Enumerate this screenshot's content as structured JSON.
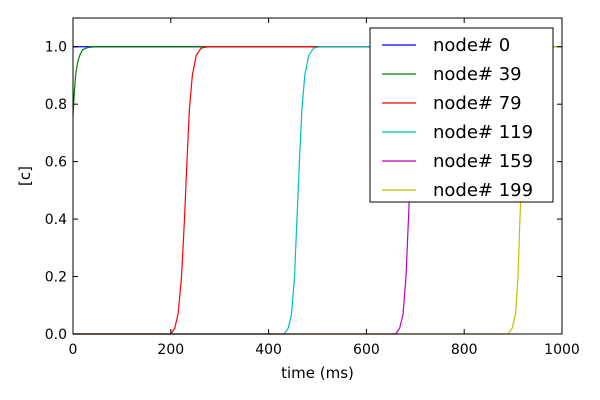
{
  "chart_data": {
    "type": "line",
    "title": "",
    "xlabel": "time (ms)",
    "ylabel": "[c]",
    "xlim": [
      0,
      1000
    ],
    "ylim": [
      0,
      1.1
    ],
    "x_ticks": [
      0,
      200,
      400,
      600,
      800,
      1000
    ],
    "y_ticks": [
      0.0,
      0.2,
      0.4,
      0.6,
      0.8,
      1.0
    ],
    "x_tick_labels": [
      "0",
      "200",
      "400",
      "600",
      "800",
      "1000"
    ],
    "y_tick_labels": [
      "0.0",
      "0.2",
      "0.4",
      "0.6",
      "0.8",
      "1.0"
    ],
    "grid": false,
    "legend_position": "top-right",
    "series": [
      {
        "name": "node# 0",
        "color": "#0000ff",
        "points": [
          [
            0,
            1.0
          ],
          [
            1000,
            1.0
          ]
        ]
      },
      {
        "name": "node# 39",
        "color": "#008000",
        "points": [
          [
            0,
            0.76
          ],
          [
            3,
            0.85
          ],
          [
            6,
            0.91
          ],
          [
            10,
            0.95
          ],
          [
            15,
            0.975
          ],
          [
            20,
            0.99
          ],
          [
            30,
            0.997
          ],
          [
            45,
            1.0
          ],
          [
            1000,
            1.0
          ]
        ]
      },
      {
        "name": "node# 79",
        "color": "#ff0000",
        "points": [
          [
            0,
            0.0
          ],
          [
            200,
            0.0
          ],
          [
            208,
            0.02
          ],
          [
            215,
            0.07
          ],
          [
            222,
            0.2
          ],
          [
            228,
            0.4
          ],
          [
            233,
            0.6
          ],
          [
            238,
            0.78
          ],
          [
            244,
            0.9
          ],
          [
            252,
            0.97
          ],
          [
            262,
            0.995
          ],
          [
            275,
            1.0
          ],
          [
            1000,
            1.0
          ]
        ]
      },
      {
        "name": "node# 119",
        "color": "#00bfbf",
        "points": [
          [
            0,
            0.0
          ],
          [
            432,
            0.0
          ],
          [
            440,
            0.02
          ],
          [
            447,
            0.07
          ],
          [
            453,
            0.2
          ],
          [
            458,
            0.4
          ],
          [
            463,
            0.6
          ],
          [
            468,
            0.78
          ],
          [
            474,
            0.9
          ],
          [
            482,
            0.97
          ],
          [
            492,
            0.995
          ],
          [
            505,
            1.0
          ],
          [
            1000,
            1.0
          ]
        ]
      },
      {
        "name": "node# 159",
        "color": "#bf00bf",
        "points": [
          [
            0,
            0.0
          ],
          [
            660,
            0.0
          ],
          [
            668,
            0.02
          ],
          [
            675,
            0.07
          ],
          [
            681,
            0.2
          ],
          [
            686,
            0.4
          ],
          [
            691,
            0.6
          ],
          [
            696,
            0.78
          ]
        ]
      },
      {
        "name": "node# 199",
        "color": "#bfbf00",
        "points": [
          [
            0,
            0.0
          ],
          [
            890,
            0.0
          ],
          [
            898,
            0.02
          ],
          [
            905,
            0.07
          ],
          [
            910,
            0.2
          ],
          [
            914,
            0.4
          ],
          [
            918,
            0.6
          ],
          [
            922,
            0.78
          ],
          [
            926,
            0.9
          ],
          [
            932,
            0.97
          ],
          [
            940,
            0.995
          ],
          [
            950,
            1.0
          ],
          [
            1000,
            1.0
          ]
        ]
      }
    ]
  }
}
